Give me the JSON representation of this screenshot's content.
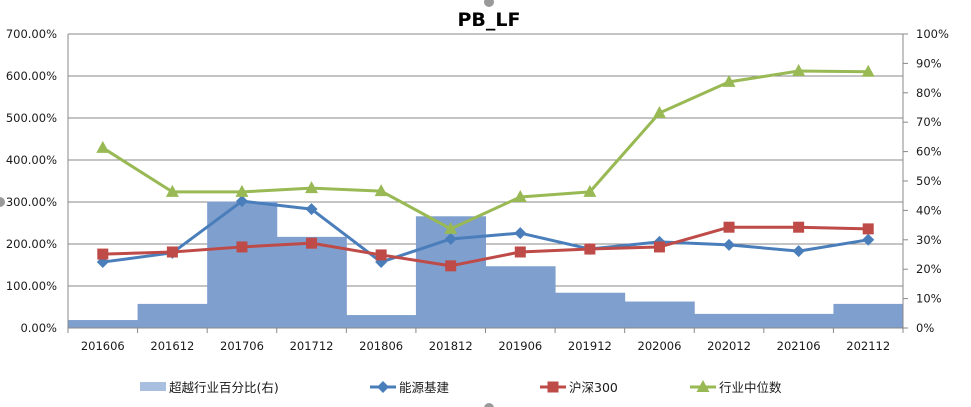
{
  "chart_data": {
    "type": "bar+line",
    "title": "PB_LF",
    "categories": [
      "201606",
      "201612",
      "201706",
      "201712",
      "201806",
      "201812",
      "201906",
      "201912",
      "202006",
      "202012",
      "202106",
      "202112"
    ],
    "left_axis": {
      "min": 0,
      "max": 700,
      "step": 100,
      "ticks": [
        "0.00%",
        "100.00%",
        "200.00%",
        "300.00%",
        "400.00%",
        "500.00%",
        "600.00%",
        "700.00%"
      ]
    },
    "right_axis": {
      "min": 0,
      "max": 100,
      "step": 10,
      "ticks": [
        "0%",
        "10%",
        "20%",
        "30%",
        "40%",
        "50%",
        "60%",
        "70%",
        "80%",
        "90%",
        "100%"
      ]
    },
    "grid": "horizontal",
    "legend_position": "bottom",
    "series": [
      {
        "name": "超越行业百分比(右)",
        "type": "bar",
        "axis": "right",
        "color": "#7f9fcf",
        "values": [
          2.7,
          8.2,
          43,
          31,
          4.4,
          38,
          21,
          12,
          9,
          4.8,
          4.8,
          8.2
        ]
      },
      {
        "name": "能源基建",
        "type": "line",
        "axis": "left",
        "marker": "diamond",
        "color": "#4a7ebb",
        "values": [
          157,
          179,
          302,
          283,
          157,
          212,
          226,
          188,
          205,
          198,
          183,
          210
        ]
      },
      {
        "name": "沪深300",
        "type": "line",
        "axis": "left",
        "marker": "square",
        "color": "#be4b48",
        "values": [
          176,
          181,
          193,
          202,
          174,
          148,
          181,
          188,
          193,
          240,
          240,
          236
        ]
      },
      {
        "name": "行业中位数",
        "type": "line",
        "axis": "left",
        "marker": "triangle",
        "color": "#98b954",
        "values": [
          429,
          324,
          324,
          333,
          326,
          236,
          312,
          324,
          512,
          586,
          612,
          610
        ]
      }
    ]
  }
}
